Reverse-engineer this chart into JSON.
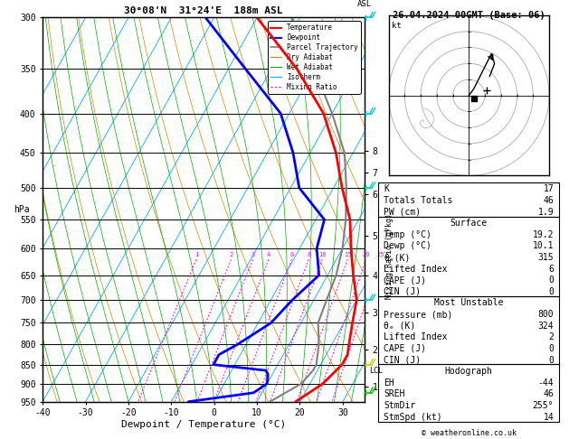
{
  "title_left": "30°08'N  31°24'E  188m ASL",
  "title_right": "26.04.2024 00GMT (Base: 06)",
  "xlabel": "Dewpoint / Temperature (°C)",
  "pressure_levels": [
    300,
    350,
    400,
    450,
    500,
    550,
    600,
    650,
    700,
    750,
    800,
    850,
    900,
    950
  ],
  "temp_min": -40,
  "temp_max": 35,
  "temp_ticks": [
    -40,
    -30,
    -20,
    -10,
    0,
    10,
    20,
    30
  ],
  "km_ticks": [
    1,
    2,
    3,
    4,
    5,
    6,
    7,
    8
  ],
  "km_pressures": [
    907,
    812,
    727,
    650,
    578,
    510,
    478,
    447
  ],
  "lcl_pressure": 865,
  "skew": 50,
  "temperature_profile": {
    "pressure": [
      950,
      925,
      900,
      875,
      850,
      825,
      800,
      750,
      700,
      650,
      600,
      550,
      500,
      450,
      400,
      350,
      300
    ],
    "temp": [
      19,
      21,
      23,
      24,
      25,
      25,
      24,
      22,
      20,
      16,
      12,
      8,
      2,
      -4,
      -12,
      -24,
      -40
    ]
  },
  "dewpoint_profile": {
    "pressure": [
      950,
      925,
      900,
      875,
      865,
      850,
      825,
      800,
      750,
      700,
      650,
      600,
      550,
      500,
      450,
      400,
      350,
      300
    ],
    "temp": [
      -6,
      8,
      10,
      9,
      8,
      -5,
      -5,
      -2,
      3,
      5,
      8,
      4,
      2,
      -8,
      -14,
      -22,
      -36,
      -52
    ]
  },
  "parcel_profile": {
    "pressure": [
      950,
      900,
      865,
      850,
      800,
      750,
      700,
      650,
      600,
      550,
      500,
      450,
      400,
      350,
      300
    ],
    "temp": [
      13,
      18,
      19,
      19,
      17,
      14,
      13,
      12,
      10,
      7,
      3,
      -2,
      -10,
      -20,
      -32
    ]
  },
  "color_temp": "#FF0000",
  "color_dew": "#0000FF",
  "color_parcel": "#808080",
  "color_dry_adiabat": "#CC8800",
  "color_wet_adiabat": "#00AA00",
  "color_isotherm": "#00AAFF",
  "color_mixing": "#FF00FF",
  "stats": {
    "K": 17,
    "Totals_Totals": 46,
    "PW_cm": 1.9,
    "Surface_Temp": 19.2,
    "Surface_Dewp": 10.1,
    "Surface_ThetaE": 315,
    "Surface_LI": 6,
    "Surface_CAPE": 0,
    "Surface_CIN": 0,
    "MU_Pressure": 800,
    "MU_ThetaE": 324,
    "MU_LI": 2,
    "MU_CAPE": 0,
    "MU_CIN": 0,
    "EH": -44,
    "SREH": 46,
    "StmDir": 255,
    "StmSpd": 14
  },
  "wind_barbs": [
    {
      "pressure": 300,
      "km": 9,
      "u": -5,
      "v": 15,
      "color": "#00CCCC"
    },
    {
      "pressure": 400,
      "km": 7,
      "u": -3,
      "v": 10,
      "color": "#00CCCC"
    },
    {
      "pressure": 500,
      "km": 6,
      "u": -2,
      "v": 7,
      "color": "#00CCCC"
    },
    {
      "pressure": 700,
      "km": 3,
      "u": -1,
      "v": 5,
      "color": "#00CCCC"
    },
    {
      "pressure": 850,
      "km": 2,
      "u": 0,
      "v": 2,
      "color": "#CCCC00"
    },
    {
      "pressure": 925,
      "km": 1,
      "u": 0,
      "v": 1,
      "color": "#00CC00"
    }
  ]
}
